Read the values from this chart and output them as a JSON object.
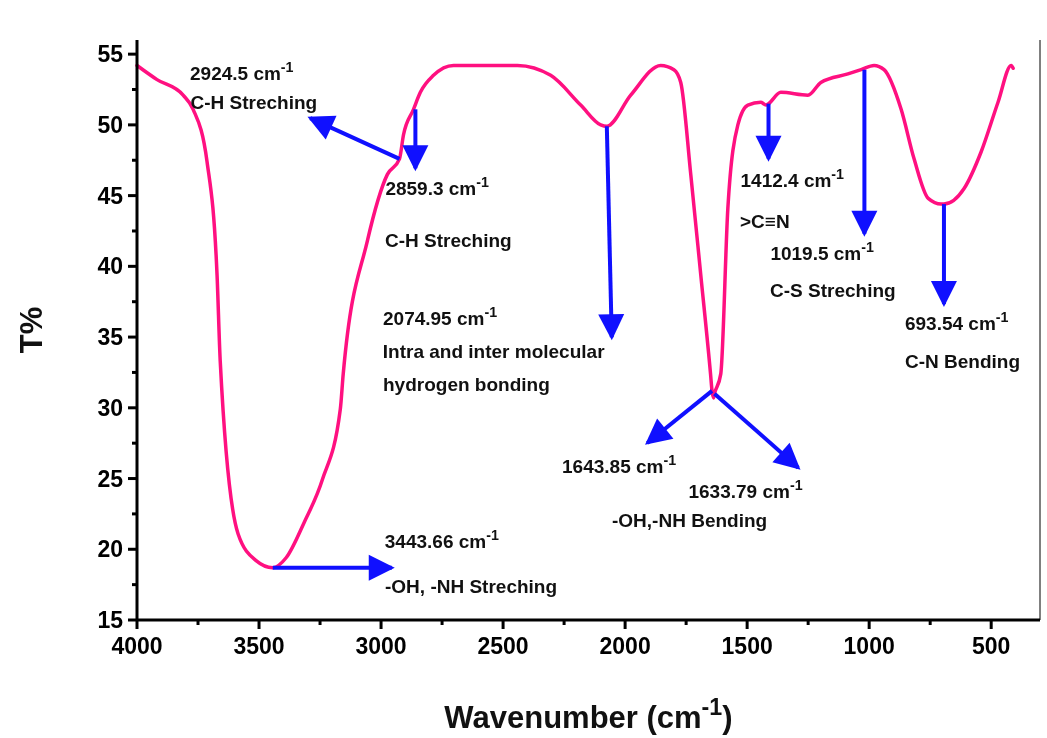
{
  "chart_data": {
    "type": "line",
    "xlabel": "Wavenumber (cm$^{-1}$)",
    "ylabel": "T%",
    "xlim": [
      4000,
      300
    ],
    "ylim": [
      15,
      56
    ],
    "xticks": [
      4000,
      {
        "value": 3750,
        "label": null
      },
      3500,
      {
        "value": 3250,
        "label": null
      },
      3000,
      {
        "value": 2750,
        "label": null
      },
      2500,
      {
        "value": 2250,
        "label": null
      },
      2000,
      {
        "value": 1750,
        "label": null
      },
      1500,
      {
        "value": 1250,
        "label": null
      },
      1000,
      {
        "value": 750,
        "label": null
      },
      500
    ],
    "yticks": [
      15,
      {
        "value": 17.5,
        "label": null
      },
      20,
      {
        "value": 22.5,
        "label": null
      },
      25,
      {
        "value": 27.5,
        "label": null
      },
      30,
      {
        "value": 32.5,
        "label": null
      },
      35,
      {
        "value": 37.5,
        "label": null
      },
      40,
      {
        "value": 42.5,
        "label": null
      },
      45,
      {
        "value": 47.5,
        "label": null
      },
      50,
      {
        "value": 52.5,
        "label": null
      },
      55
    ],
    "series": [
      {
        "color": "#ff1080",
        "x": [
          4000,
          3918,
          3811,
          3770,
          3713,
          3672,
          3659,
          3586,
          3512,
          3443.66,
          3389,
          3315,
          3241,
          3167,
          3155,
          3056,
          2974,
          2924.5,
          2908,
          2867,
          2839,
          2785,
          2703,
          2441,
          2305,
          2182,
          2100,
          2074.95,
          1977,
          1854,
          1800,
          1772,
          1731,
          1690,
          1650,
          1643.85,
          1638,
          1633.79,
          1608,
          1579,
          1538,
          1497,
          1444,
          1423,
          1412.4,
          1362,
          1251,
          1198,
          1087,
          1033,
          980,
          939,
          869,
          816,
          758,
          705,
          693.54,
          611,
          541,
          472,
          418,
          410
        ],
        "values": [
          54.2,
          53.2,
          52.1,
          51.1,
          47.4,
          39.4,
          33.3,
          21.1,
          19.2,
          18.7,
          19.4,
          21.9,
          24.9,
          29.9,
          32.4,
          41.8,
          46.5,
          47.6,
          49.3,
          51.1,
          52.3,
          53.5,
          54.2,
          54.2,
          53.5,
          51.4,
          50.0,
          49.9,
          52.1,
          54.2,
          53.9,
          53.0,
          46.5,
          39.4,
          32.4,
          31.2,
          30.7,
          31.0,
          32.4,
          44.1,
          50.0,
          51.4,
          51.6,
          51.4,
          51.5,
          52.3,
          52.1,
          53.0,
          53.6,
          53.9,
          54.2,
          53.9,
          51.1,
          47.6,
          44.8,
          44.4,
          44.4,
          45.5,
          48.1,
          51.6,
          54.2,
          54.0
        ]
      }
    ],
    "annotations": [
      "2924.5 cm$^{-1}$",
      {
        "text": "C-H Streching",
        "x": 2924.5,
        "y": 47.6
      },
      {
        "text": "2859.3 cm$^{-1}$",
        "x": 2859.3,
        "y": 51.1
      },
      "C-H Streching",
      "2074.95 cm$^{-1}$",
      {
        "text": "Intra and inter molecular",
        "x": 2074.95,
        "y": 49.9
      },
      "hydrogen bonding",
      {
        "text": "1643.85 cm$^{-1}$",
        "x": 1643.85,
        "y": 31.2
      },
      {
        "text": "1633.79 cm$^{-1}$",
        "x": 1633.79,
        "y": 31.0
      },
      "-OH,-NH Bending",
      {
        "text": "3443.66 cm$^{-1}$",
        "x": 3443.66,
        "y": 18.7
      },
      "-OH, -NH Streching",
      {
        "text": "1412.4 cm$^{-1}$",
        "x": 1412.4,
        "y": 51.5
      },
      ">C≡N",
      {
        "text": "1019.5 cm$^{-1}$",
        "x": 1019.5,
        "y": 53.9
      },
      "C-S Streching",
      {
        "text": "693.54 cm$^{-1}$",
        "x": 693.54,
        "y": 44.4
      },
      "C-N Bending"
    ]
  }
}
